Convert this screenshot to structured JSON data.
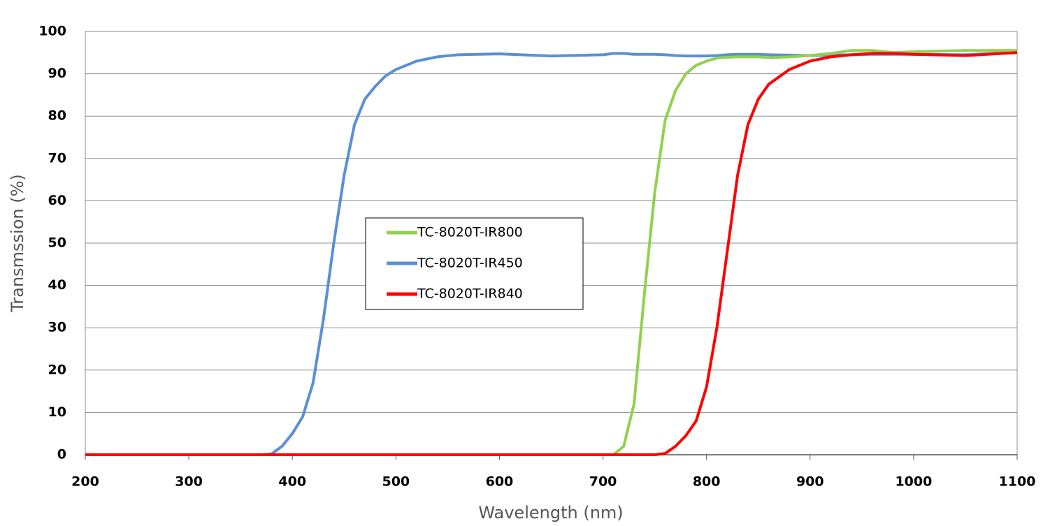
{
  "chart_data": {
    "type": "line",
    "x_label": "Wavelength (nm)",
    "y_label": "Transmssion (%)",
    "x": [
      200,
      300,
      350,
      370,
      380,
      390,
      400,
      410,
      420,
      430,
      440,
      450,
      460,
      470,
      480,
      490,
      500,
      520,
      540,
      560,
      600,
      650,
      700,
      710,
      720,
      730,
      740,
      750,
      760,
      770,
      780,
      790,
      800,
      810,
      820,
      830,
      840,
      850,
      860,
      880,
      900,
      920,
      940,
      960,
      980,
      1000,
      1050,
      1100
    ],
    "series": [
      {
        "name": "TC-8020T-IR800",
        "color": "#92d050",
        "values": [
          0,
          0,
          0,
          0,
          0,
          0,
          0,
          0,
          0,
          0,
          0,
          0,
          0,
          0,
          0,
          0,
          0,
          0,
          0,
          0,
          0,
          0,
          0,
          0,
          2,
          12,
          38,
          62,
          79,
          86,
          90,
          92,
          93,
          93.7,
          93.9,
          94,
          94,
          94,
          93.8,
          94,
          94.3,
          94.8,
          95.5,
          95.5,
          95,
          95.2,
          95.5,
          95.5
        ]
      },
      {
        "name": "TC-8020T-IR450",
        "color": "#5b8fd6",
        "values": [
          0,
          0,
          0,
          0,
          0.2,
          2,
          5,
          9,
          17,
          32,
          50,
          66,
          78,
          84,
          87,
          89.5,
          91,
          93,
          94,
          94.5,
          94.7,
          94.2,
          94.5,
          94.8,
          94.8,
          94.6,
          94.6,
          94.6,
          94.5,
          94.3,
          94.2,
          94.2,
          94.2,
          94.3,
          94.5,
          94.6,
          94.6,
          94.6,
          94.5,
          94.4,
          94.3,
          94.4,
          94.5,
          94.6,
          94.6,
          94.6,
          94.5,
          95
        ]
      },
      {
        "name": "TC-8020T-IR840",
        "color": "#ff0000",
        "values": [
          0,
          0,
          0,
          0,
          0,
          0,
          0,
          0,
          0,
          0,
          0,
          0,
          0,
          0,
          0,
          0,
          0,
          0,
          0,
          0,
          0,
          0,
          0,
          0,
          0,
          0,
          0,
          0,
          0.3,
          2,
          4.5,
          8,
          16,
          30,
          48,
          66,
          78,
          84,
          87.5,
          91,
          93,
          94,
          94.5,
          94.8,
          94.8,
          94.6,
          94.3,
          95
        ]
      }
    ],
    "xlim": [
      200,
      1100
    ],
    "xticks": [
      200,
      300,
      400,
      500,
      600,
      700,
      800,
      900,
      1000,
      1100
    ],
    "ylim": [
      0,
      100
    ],
    "yticks": [
      0,
      10,
      20,
      30,
      40,
      50,
      60,
      70,
      80,
      90,
      100
    ],
    "grid": true
  }
}
